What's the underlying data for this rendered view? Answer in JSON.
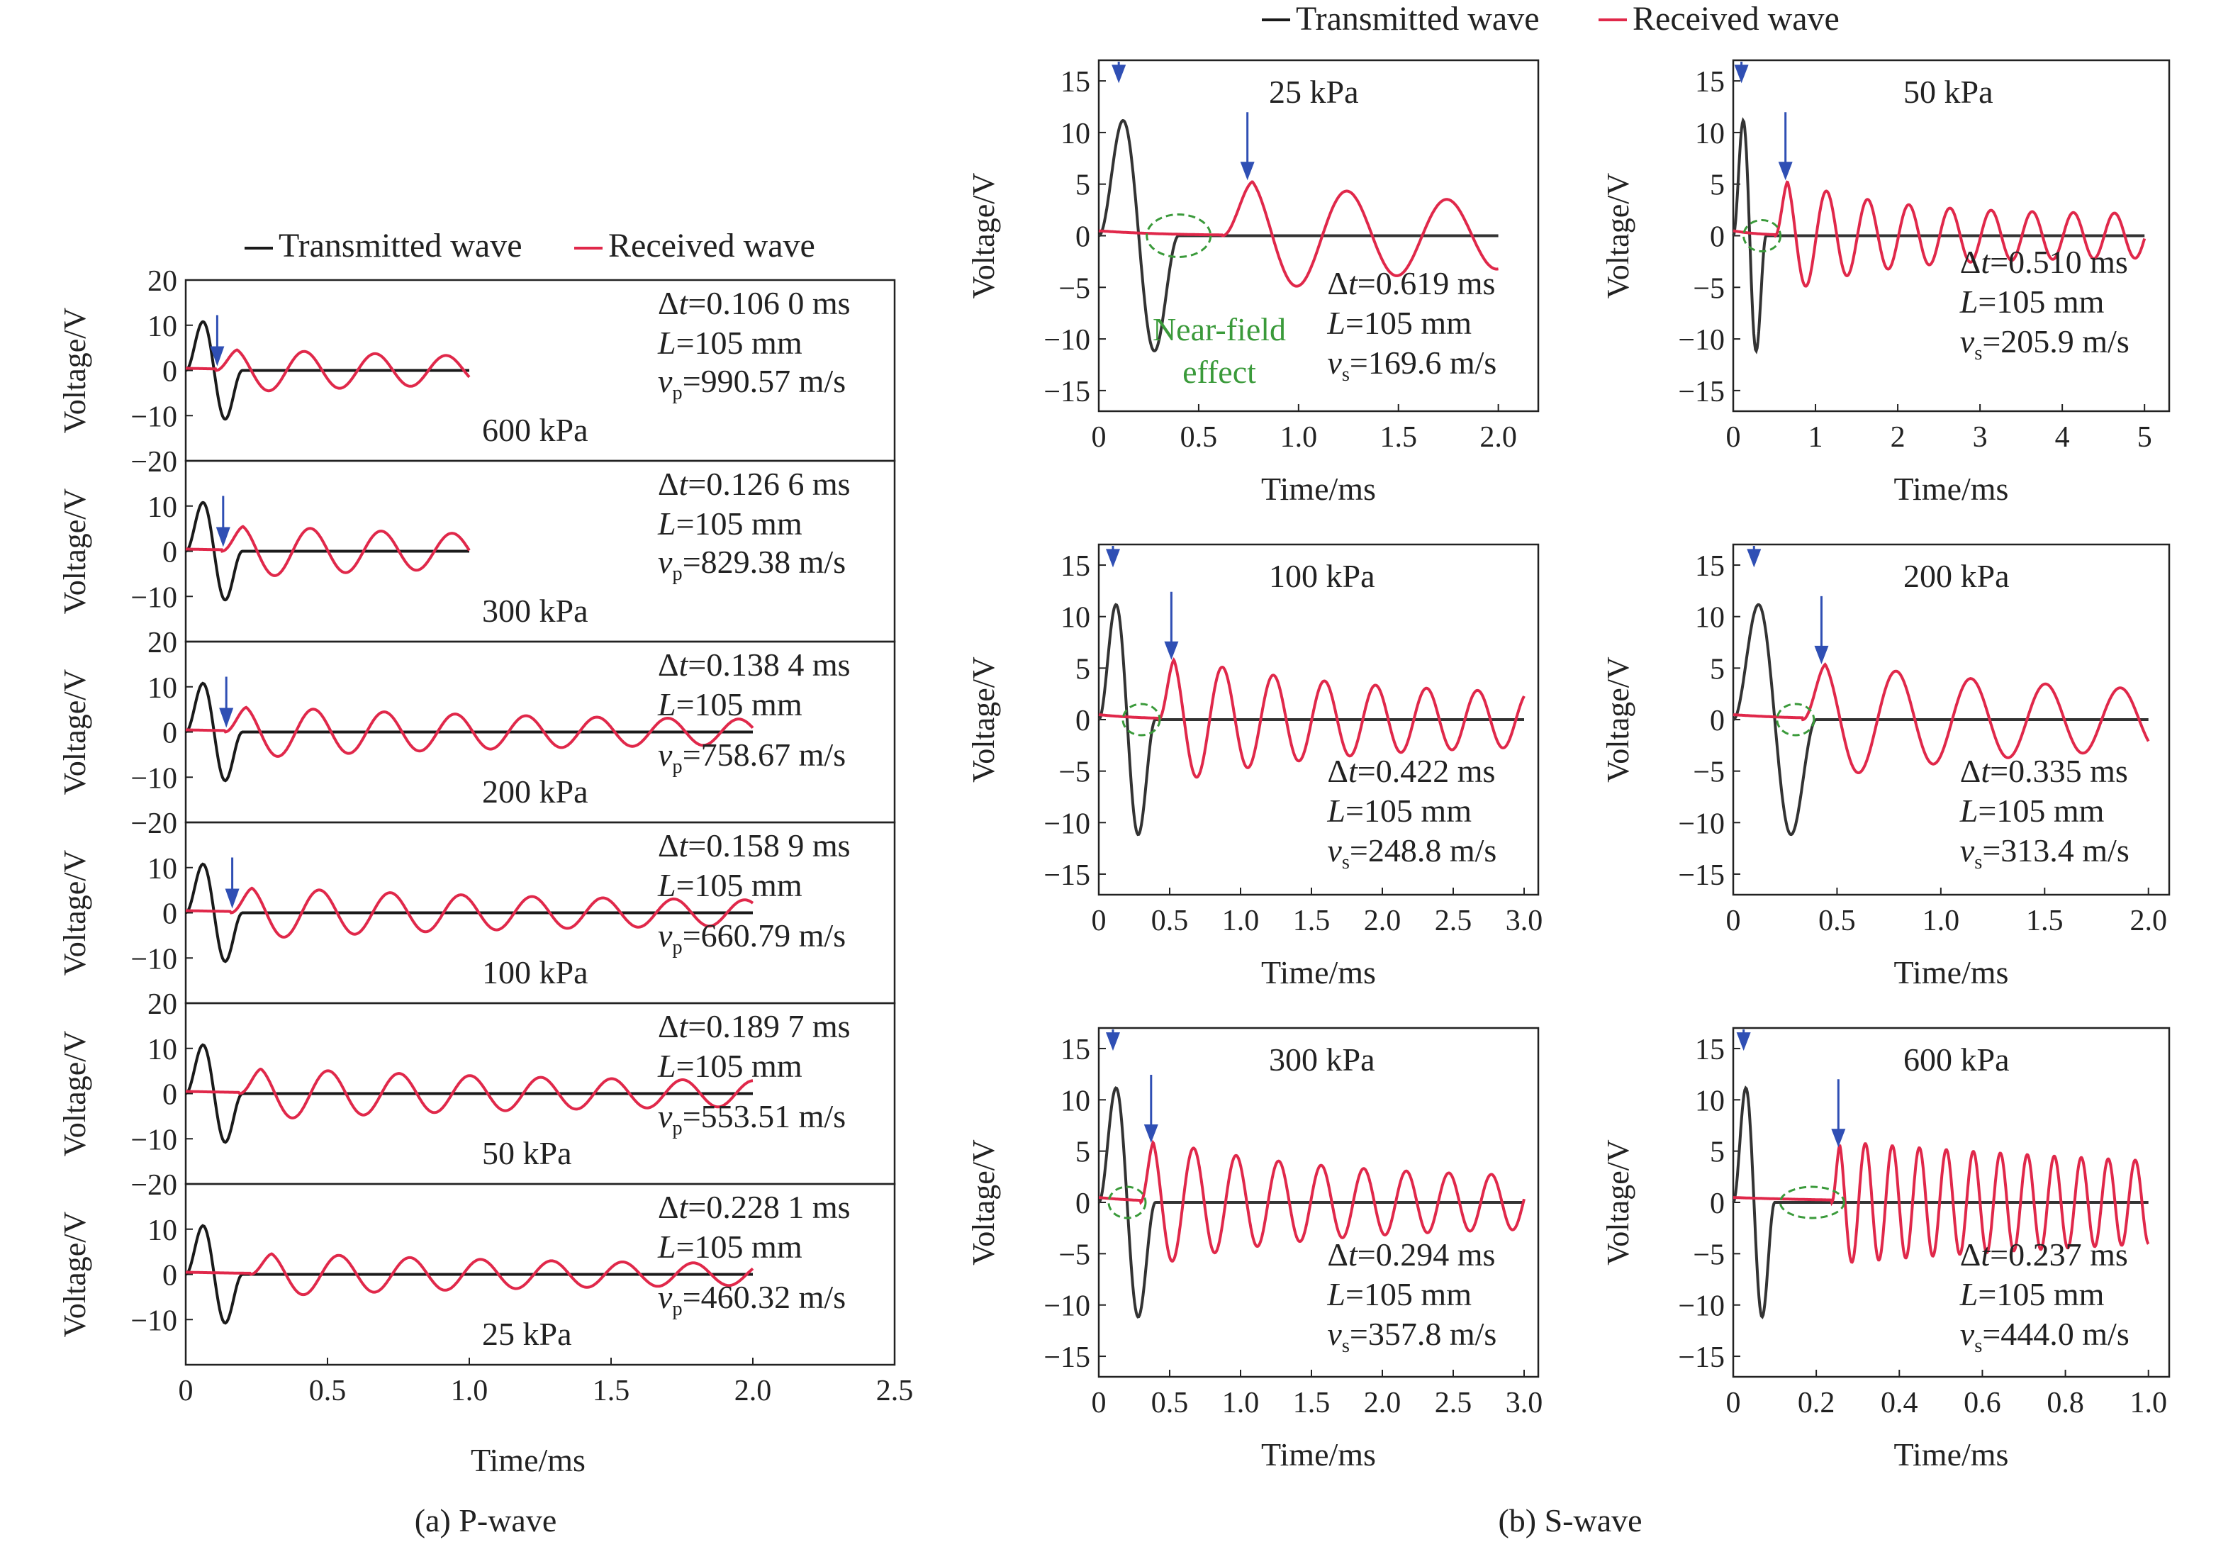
{
  "colors": {
    "transmitted": "#1a1a1a",
    "received": "#e0284a",
    "arrow": "#2f4fb4",
    "near_field": "#3a9a3a",
    "axis": "#222222"
  },
  "figure": {
    "caption_a": "(a) P-wave",
    "caption_b": "(b) S-wave",
    "legend_transmitted": "Transmitted wave",
    "legend_received": "Received wave",
    "near_field_line1": "Near-field",
    "near_field_line2": "effect",
    "xlabel": "Time/ms",
    "ylabel": "Voltage/V"
  },
  "chart_data": [
    {
      "id": "p-wave",
      "type": "line",
      "xlabel": "Time/ms",
      "ylabel": "Voltage/V",
      "xlim": [
        0,
        2.5
      ],
      "xticks": [
        "0",
        "0.5",
        "1.0",
        "1.5",
        "2.0",
        "2.5"
      ],
      "ylim": [
        -20,
        20
      ],
      "yticks": [
        "20",
        "10",
        "0",
        "−10",
        "−20"
      ],
      "series_names": [
        "Transmitted wave",
        "Received wave"
      ],
      "panels": [
        {
          "pressure": "600 kPa",
          "dt": "0.106 0 ms",
          "L": "105 mm",
          "v": "990.57 m/s",
          "t_end": 1.0,
          "arrival": 0.106,
          "rx_amp": 5,
          "tx_amp": 14,
          "tx_period": 0.2
        },
        {
          "pressure": "300 kPa",
          "dt": "0.126 6 ms",
          "L": "105 mm",
          "v": "829.38 m/s",
          "t_end": 1.0,
          "arrival": 0.127,
          "rx_amp": 6,
          "tx_amp": 14,
          "tx_period": 0.2
        },
        {
          "pressure": "200 kPa",
          "dt": "0.138 4 ms",
          "L": "105 mm",
          "v": "758.67 m/s",
          "t_end": 2.0,
          "arrival": 0.138,
          "rx_amp": 6,
          "tx_amp": 14,
          "tx_period": 0.2
        },
        {
          "pressure": "100 kPa",
          "dt": "0.158 9 ms",
          "L": "105 mm",
          "v": "660.79 m/s",
          "t_end": 2.0,
          "arrival": 0.159,
          "rx_amp": 6,
          "tx_amp": 14,
          "tx_period": 0.2
        },
        {
          "pressure": "50 kPa",
          "dt": "0.189 7 ms",
          "L": "105 mm",
          "v": "553.51 m/s",
          "t_end": 2.0,
          "arrival": 0.19,
          "rx_amp": 6,
          "tx_amp": 14,
          "tx_period": 0.2
        },
        {
          "pressure": "25 kPa",
          "dt": "0.228 1 ms",
          "L": "105 mm",
          "v": "460.32 m/s",
          "t_end": 2.0,
          "arrival": 0.228,
          "rx_amp": 5,
          "tx_amp": 14,
          "tx_period": 0.2
        }
      ]
    },
    {
      "id": "s-wave",
      "type": "line",
      "xlabel": "Time/ms",
      "ylabel": "Voltage/V",
      "ylim": [
        -17,
        17
      ],
      "yticks": [
        "15",
        "10",
        "5",
        "0",
        "−5",
        "−10",
        "−15"
      ],
      "series_names": [
        "Transmitted wave",
        "Received wave"
      ],
      "panels": [
        {
          "pressure": "25 kPa",
          "dt": "0.619 ms",
          "L": "105 mm",
          "v": "169.6 m/s",
          "xlim": [
            0,
            2.2
          ],
          "xticks": [
            0,
            0.5,
            1.0,
            1.5,
            2.0
          ],
          "xtick_labels": [
            "0",
            "0.5",
            "1.0",
            "1.5",
            "2.0"
          ],
          "t_end": 2.0,
          "tx_period": 0.4,
          "arrival": 0.619,
          "rx_period": 0.5,
          "rx_amp": 6,
          "near_field": true,
          "near_field_t": 0.4
        },
        {
          "pressure": "50 kPa",
          "dt": "0.510 ms",
          "L": "105 mm",
          "v": "205.9 m/s",
          "xlim": [
            0,
            5.3
          ],
          "xticks": [
            0,
            1,
            2,
            3,
            4,
            5
          ],
          "xtick_labels": [
            "0",
            "1",
            "2",
            "3",
            "4",
            "5"
          ],
          "t_end": 5.0,
          "tx_period": 0.4,
          "arrival": 0.51,
          "rx_period": 0.5,
          "rx_amp": 6,
          "near_field": true,
          "near_field_t": 0.35
        },
        {
          "pressure": "100 kPa",
          "dt": "0.422 ms",
          "L": "105 mm",
          "v": "248.8 m/s",
          "xlim": [
            0,
            3.1
          ],
          "xticks": [
            0,
            0.5,
            1.0,
            1.5,
            2.0,
            2.5,
            3.0
          ],
          "xtick_labels": [
            "0",
            "0.5",
            "1.0",
            "1.5",
            "2.0",
            "2.5",
            "3.0"
          ],
          "t_end": 3.0,
          "tx_period": 0.4,
          "arrival": 0.422,
          "rx_period": 0.36,
          "rx_amp": 6.5,
          "near_field": true,
          "near_field_t": 0.3
        },
        {
          "pressure": "200 kPa",
          "dt": "0.335 ms",
          "L": "105 mm",
          "v": "313.4 m/s",
          "xlim": [
            0,
            2.1
          ],
          "xticks": [
            0,
            0.5,
            1.0,
            1.5,
            2.0
          ],
          "xtick_labels": [
            "0",
            "0.5",
            "1.0",
            "1.5",
            "2.0"
          ],
          "t_end": 2.0,
          "tx_period": 0.4,
          "arrival": 0.335,
          "rx_period": 0.36,
          "rx_amp": 6,
          "near_field": true,
          "near_field_t": 0.3
        },
        {
          "pressure": "300 kPa",
          "dt": "0.294 ms",
          "L": "105 mm",
          "v": "357.8 m/s",
          "xlim": [
            0,
            3.1
          ],
          "xticks": [
            0,
            0.5,
            1.0,
            1.5,
            2.0,
            2.5,
            3.0
          ],
          "xtick_labels": [
            "0",
            "0.5",
            "1.0",
            "1.5",
            "2.0",
            "2.5",
            "3.0"
          ],
          "t_end": 3.0,
          "tx_period": 0.4,
          "arrival": 0.294,
          "rx_period": 0.3,
          "rx_amp": 6.5,
          "near_field": true,
          "near_field_t": 0.2
        },
        {
          "pressure": "600 kPa",
          "dt": "0.237 ms",
          "L": "105 mm",
          "v": "444.0 m/s",
          "xlim": [
            0,
            1.05
          ],
          "xticks": [
            0,
            0.2,
            0.4,
            0.6,
            0.8,
            1.0
          ],
          "xtick_labels": [
            "0",
            "0.2",
            "0.4",
            "0.6",
            "0.8",
            "1.0"
          ],
          "t_end": 1.0,
          "tx_period": 0.1,
          "arrival": 0.237,
          "rx_period": 0.065,
          "rx_amp": 6,
          "near_field": true,
          "near_field_t": 0.19
        }
      ]
    }
  ]
}
